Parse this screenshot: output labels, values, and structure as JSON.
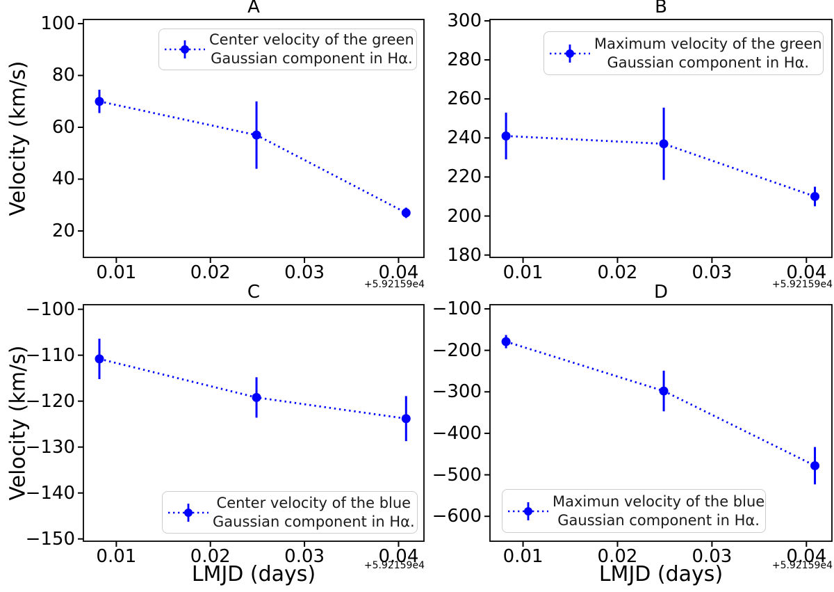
{
  "figure": {
    "background": "#ffffff",
    "series_color": "#0000ff",
    "axis_color": "#000000",
    "x_offset_label": "+5.92159e4"
  },
  "chart_data": [
    {
      "id": "A",
      "type": "scatter",
      "title": "A",
      "xlabel": "",
      "ylabel": "Velocity (km/s)",
      "x_offset_label": "+5.92159e4",
      "x": [
        0.0082,
        0.0249,
        0.0408
      ],
      "y": [
        70,
        57,
        27
      ],
      "yerr": [
        4.5,
        13,
        2
      ],
      "xlim": [
        0.0065,
        0.0427
      ],
      "ylim": [
        9.8,
        101.6
      ],
      "xticks": [
        0.01,
        0.02,
        0.03,
        0.04
      ],
      "yticks": [
        20,
        40,
        60,
        80,
        100
      ],
      "grid": false,
      "line_style": "dotted",
      "marker": "circle",
      "color": "#0000ff",
      "legend": {
        "loc": "upper right",
        "lines": [
          "Center velocity of the green",
          "Gaussian component in Hα."
        ]
      }
    },
    {
      "id": "B",
      "type": "scatter",
      "title": "B",
      "xlabel": "",
      "ylabel": "",
      "x_offset_label": "+5.92159e4",
      "x": [
        0.0082,
        0.0249,
        0.0409
      ],
      "y": [
        241,
        237,
        210
      ],
      "yerr": [
        12,
        18.5,
        5
      ],
      "xlim": [
        0.0065,
        0.0427
      ],
      "ylim": [
        178.8,
        300.7
      ],
      "xticks": [
        0.01,
        0.02,
        0.03,
        0.04
      ],
      "yticks": [
        180,
        200,
        220,
        240,
        260,
        280,
        300
      ],
      "grid": false,
      "line_style": "dotted",
      "marker": "circle",
      "color": "#0000ff",
      "legend": {
        "loc": "upper right",
        "lines": [
          "Maximum velocity of the green",
          "Gaussian component in Hα."
        ]
      }
    },
    {
      "id": "C",
      "type": "scatter",
      "title": "C",
      "xlabel": "LMJD (days)",
      "ylabel": "Velocity (km/s)",
      "x_offset_label": "+5.92159e4",
      "x": [
        0.0082,
        0.0249,
        0.0408
      ],
      "y": [
        -110.8,
        -119.2,
        -123.8
      ],
      "yerr": [
        4.4,
        4.4,
        4.9
      ],
      "xlim": [
        0.0065,
        0.0427
      ],
      "ylim": [
        -150.5,
        -99
      ],
      "xticks": [
        0.01,
        0.02,
        0.03,
        0.04
      ],
      "yticks": [
        -100,
        -110,
        -120,
        -130,
        -140,
        -150
      ],
      "grid": false,
      "line_style": "dotted",
      "marker": "circle",
      "color": "#0000ff",
      "legend": {
        "loc": "lower right",
        "lines": [
          "Center velocity of the blue",
          "Gaussian component in Hα."
        ]
      }
    },
    {
      "id": "D",
      "type": "scatter",
      "title": "D",
      "xlabel": "LMJD (days)",
      "ylabel": "",
      "x_offset_label": "+5.92159e4",
      "x": [
        0.0082,
        0.0249,
        0.0409
      ],
      "y": [
        -179,
        -298,
        -478
      ],
      "yerr": [
        16,
        49,
        45
      ],
      "xlim": [
        0.0065,
        0.0427
      ],
      "ylim": [
        -660,
        -90
      ],
      "xticks": [
        0.01,
        0.02,
        0.03,
        0.04
      ],
      "yticks": [
        -100,
        -200,
        -300,
        -400,
        -500,
        -600
      ],
      "grid": false,
      "line_style": "dotted",
      "marker": "circle",
      "color": "#0000ff",
      "legend": {
        "loc": "lower center",
        "lines": [
          "Maximun velocity of the blue",
          "Gaussian component in Hα."
        ]
      }
    }
  ]
}
